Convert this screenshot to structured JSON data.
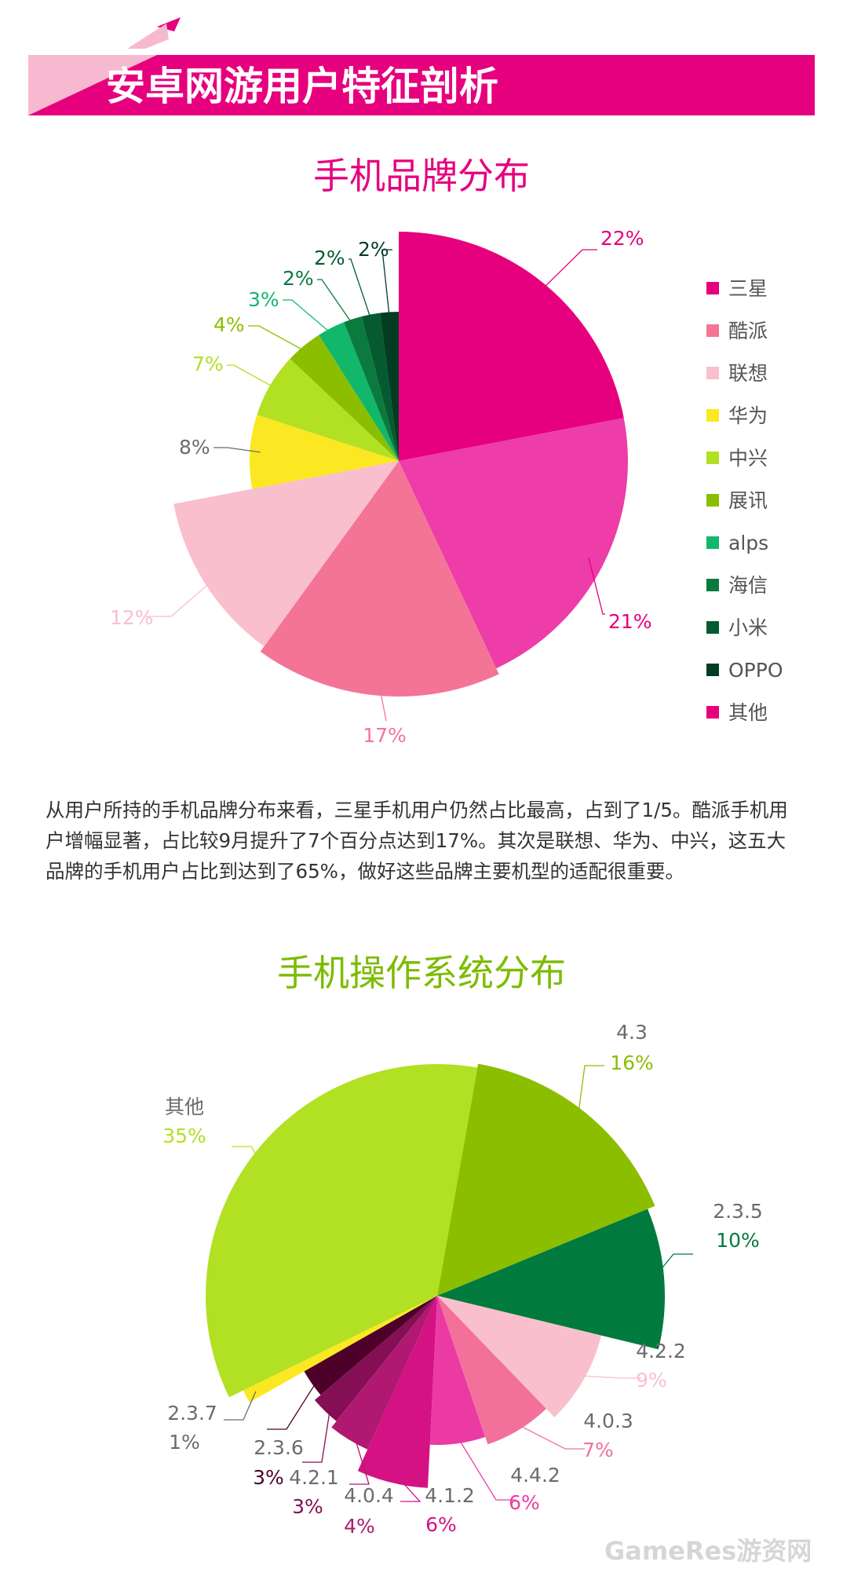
{
  "header": {
    "title": "安卓网游用户特征剖析"
  },
  "paragraph": "从用户所持的手机品牌分布来看，三星手机用户仍然占比最高，占到了1/5。酷派手机用户增幅显著，占比较9月提升了7个百分点达到17%。其次是联想、华为、中兴，这五大品牌的手机用户占比到达到了65%，做好这些品牌主要机型的适配很重要。",
  "watermark": "GameRes游资网",
  "colors": {
    "brand": "#e6007e",
    "green_title": "#7dbb00"
  },
  "chart_data": [
    {
      "type": "pie",
      "title": "手机品牌分布",
      "slices": [
        {
          "name": "三星",
          "value": 22,
          "label": "22%",
          "color": "#e6007e"
        },
        {
          "name": "",
          "value": 21,
          "label": "21%",
          "color": "#ee3ca8"
        },
        {
          "name": "酷派",
          "value": 17,
          "label": "17%",
          "color": "#f47496"
        },
        {
          "name": "联想",
          "value": 12,
          "label": "12%",
          "color": "#f9bfcc"
        },
        {
          "name": "华为",
          "value": 8,
          "label": "8%",
          "color": "#fbe822"
        },
        {
          "name": "中兴",
          "value": 7,
          "label": "7%",
          "color": "#b2e022"
        },
        {
          "name": "展讯",
          "value": 4,
          "label": "4%",
          "color": "#8cbe00"
        },
        {
          "name": "alps",
          "value": 3,
          "label": "3%",
          "color": "#11b76a"
        },
        {
          "name": "海信",
          "value": 2,
          "label": "2%",
          "color": "#0a7a3e"
        },
        {
          "name": "小米",
          "value": 2,
          "label": "2%",
          "color": "#055a30"
        },
        {
          "name": "OPPO",
          "value": 2,
          "label": "2%",
          "color": "#033c22"
        }
      ],
      "legend": [
        "三星",
        "酷派",
        "联想",
        "华为",
        "中兴",
        "展讯",
        "alps",
        "海信",
        "小米",
        "OPPO",
        "其他"
      ],
      "legend_colors": [
        "#e6007e",
        "#f47496",
        "#f9bfcc",
        "#fbe822",
        "#b2e022",
        "#8cbe00",
        "#11b76a",
        "#0a7a3e",
        "#055a30",
        "#033c22",
        "#e6007e"
      ],
      "legend_position": "right"
    },
    {
      "type": "pie",
      "title": "手机操作系统分布",
      "slices": [
        {
          "name": "4.3",
          "value": 16,
          "label": "16%",
          "color": "#8cbe00"
        },
        {
          "name": "2.3.5",
          "value": 10,
          "label": "10%",
          "color": "#007a3d"
        },
        {
          "name": "4.2.2",
          "value": 9,
          "label": "9%",
          "color": "#f9bfcc"
        },
        {
          "name": "4.0.3",
          "value": 7,
          "label": "7%",
          "color": "#f2709a"
        },
        {
          "name": "4.4.2",
          "value": 6,
          "label": "6%",
          "color": "#ec3aa4"
        },
        {
          "name": "4.1.2",
          "value": 6,
          "label": "6%",
          "color": "#d41283"
        },
        {
          "name": "4.0.4",
          "value": 4,
          "label": "4%",
          "color": "#b01871"
        },
        {
          "name": "4.2.1",
          "value": 3,
          "label": "3%",
          "color": "#850f55"
        },
        {
          "name": "2.3.6",
          "value": 3,
          "label": "3%",
          "color": "#4d0029"
        },
        {
          "name": "2.3.7",
          "value": 1,
          "label": "1%",
          "color": "#fbe822"
        },
        {
          "name": "其他",
          "value": 35,
          "label": "35%",
          "color": "#b2e022"
        }
      ]
    }
  ]
}
